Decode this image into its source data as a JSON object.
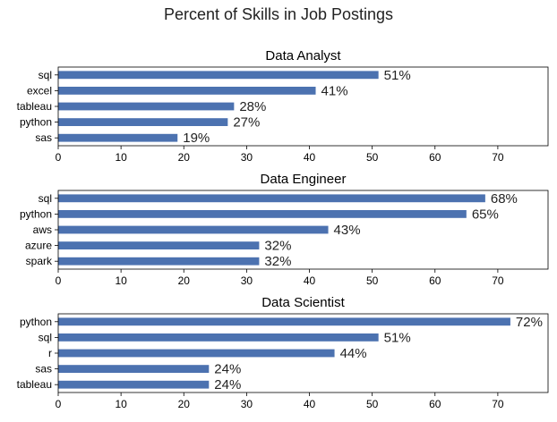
{
  "figure": {
    "suptitle": "Percent of Skills in Job Postings",
    "bar_color": "#4C72B0",
    "value_suffix": "%"
  },
  "chart_data": [
    {
      "type": "bar",
      "orientation": "horizontal",
      "title": "Data Analyst",
      "xlabel": "",
      "ylabel": "",
      "xlim": [
        0,
        78
      ],
      "xticks": [
        0,
        10,
        20,
        30,
        40,
        50,
        60,
        70
      ],
      "grid": false,
      "categories": [
        "sql",
        "excel",
        "tableau",
        "python",
        "sas"
      ],
      "values": [
        51,
        41,
        28,
        27,
        19
      ],
      "data_labels": [
        "51%",
        "41%",
        "28%",
        "27%",
        "19%"
      ]
    },
    {
      "type": "bar",
      "orientation": "horizontal",
      "title": "Data Engineer",
      "xlabel": "",
      "ylabel": "",
      "xlim": [
        0,
        78
      ],
      "xticks": [
        0,
        10,
        20,
        30,
        40,
        50,
        60,
        70
      ],
      "grid": false,
      "categories": [
        "sql",
        "python",
        "aws",
        "azure",
        "spark"
      ],
      "values": [
        68,
        65,
        43,
        32,
        32
      ],
      "data_labels": [
        "68%",
        "65%",
        "43%",
        "32%",
        "32%"
      ]
    },
    {
      "type": "bar",
      "orientation": "horizontal",
      "title": "Data Scientist",
      "xlabel": "",
      "ylabel": "",
      "xlim": [
        0,
        78
      ],
      "xticks": [
        0,
        10,
        20,
        30,
        40,
        50,
        60,
        70
      ],
      "grid": false,
      "categories": [
        "python",
        "sql",
        "r",
        "sas",
        "tableau"
      ],
      "values": [
        72,
        51,
        44,
        24,
        24
      ],
      "data_labels": [
        "72%",
        "51%",
        "44%",
        "24%",
        "24%"
      ]
    }
  ]
}
